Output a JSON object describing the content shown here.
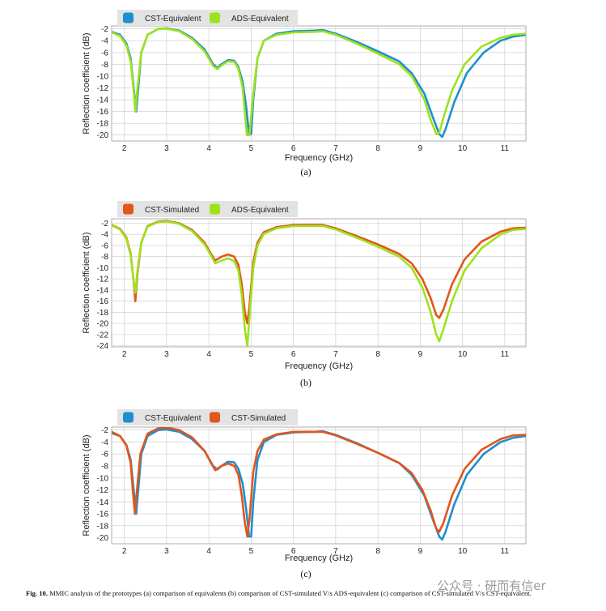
{
  "colors": {
    "CST-Equivalent": "#1e8fcf",
    "ADS-Equivalent": "#9ee21c",
    "CST-Simulated": "#e2561a",
    "plot_bg": "#ffffff",
    "grid": "#c8c8c8",
    "legend_bg": "#e3e3e3"
  },
  "chart_data": [
    {
      "type": "line",
      "panel_label": "(a)",
      "xlabel": "Frequency (GHz)",
      "ylabel": "Reflection coefficient (dB)",
      "xlim": [
        1.7,
        11.5
      ],
      "ylim": [
        -21,
        -1.5
      ],
      "xticks": [
        2,
        3,
        4,
        5,
        6,
        7,
        8,
        9,
        10,
        11
      ],
      "yticks": [
        -2,
        -4,
        -6,
        -8,
        -10,
        -12,
        -14,
        -16,
        -18,
        -20
      ],
      "grid": true,
      "legend_position": "top-left",
      "series": [
        {
          "name": "CST-Equivalent",
          "x": [
            1.7,
            1.9,
            2.05,
            2.15,
            2.22,
            2.28,
            2.33,
            2.4,
            2.55,
            2.8,
            3.0,
            3.3,
            3.6,
            3.9,
            4.1,
            4.2,
            4.3,
            4.45,
            4.6,
            4.7,
            4.8,
            4.88,
            4.95,
            5.0,
            5.05,
            5.15,
            5.3,
            5.6,
            6.0,
            6.5,
            6.7,
            7.0,
            7.5,
            8.0,
            8.5,
            8.8,
            9.1,
            9.3,
            9.45,
            9.52,
            9.6,
            9.8,
            10.1,
            10.5,
            10.9,
            11.2,
            11.5
          ],
          "y": [
            -2.5,
            -3,
            -4.5,
            -7,
            -12,
            -16,
            -12,
            -6,
            -3,
            -2,
            -1.9,
            -2.3,
            -3.5,
            -5.5,
            -8,
            -8.6,
            -8,
            -7.3,
            -7.4,
            -8.5,
            -11,
            -15,
            -19.8,
            -19.8,
            -14,
            -7,
            -4,
            -2.8,
            -2.4,
            -2.3,
            -2.2,
            -2.8,
            -4.2,
            -5.8,
            -7.5,
            -9.5,
            -13,
            -17,
            -19.8,
            -20.3,
            -19,
            -14.5,
            -9.5,
            -6,
            -4,
            -3.3,
            -3
          ]
        },
        {
          "name": "ADS-Equivalent",
          "x": [
            1.7,
            1.9,
            2.05,
            2.15,
            2.22,
            2.26,
            2.31,
            2.4,
            2.55,
            2.8,
            3.0,
            3.3,
            3.6,
            3.9,
            4.1,
            4.2,
            4.3,
            4.45,
            4.6,
            4.7,
            4.8,
            4.86,
            4.9,
            4.96,
            5.05,
            5.15,
            5.3,
            5.6,
            6.0,
            6.5,
            6.7,
            7.0,
            7.5,
            8.0,
            8.5,
            8.8,
            9.1,
            9.25,
            9.38,
            9.45,
            9.55,
            9.75,
            10.05,
            10.45,
            10.9,
            11.2,
            11.5
          ],
          "y": [
            -2.6,
            -3.2,
            -4.8,
            -7.5,
            -12.5,
            -16,
            -12,
            -6,
            -3,
            -2,
            -1.95,
            -2.4,
            -3.7,
            -5.8,
            -8.3,
            -8.8,
            -8.2,
            -7.5,
            -7.6,
            -8.8,
            -12,
            -17,
            -20,
            -20,
            -13,
            -7,
            -4,
            -3,
            -2.6,
            -2.5,
            -2.4,
            -3,
            -4.5,
            -6.2,
            -8,
            -10,
            -14,
            -17.5,
            -19.8,
            -19.6,
            -17,
            -12.5,
            -8,
            -5,
            -3.5,
            -3,
            -2.8
          ]
        }
      ]
    },
    {
      "type": "line",
      "panel_label": "(b)",
      "xlabel": "Frequency (GHz)",
      "ylabel": "Reflection coefficient (dB)",
      "xlim": [
        1.7,
        11.5
      ],
      "ylim": [
        -24.2,
        -1.2
      ],
      "xticks": [
        2,
        3,
        4,
        5,
        6,
        7,
        8,
        9,
        10,
        11
      ],
      "yticks": [
        -2,
        -4,
        -6,
        -8,
        -10,
        -12,
        -14,
        -16,
        -18,
        -20,
        -22,
        -24
      ],
      "grid": true,
      "legend_position": "top-left",
      "series": [
        {
          "name": "CST-Simulated",
          "x": [
            1.7,
            1.9,
            2.05,
            2.15,
            2.22,
            2.26,
            2.31,
            2.4,
            2.55,
            2.8,
            3.0,
            3.3,
            3.6,
            3.9,
            4.05,
            4.15,
            4.3,
            4.45,
            4.6,
            4.7,
            4.78,
            4.85,
            4.91,
            4.96,
            5.05,
            5.15,
            5.3,
            5.6,
            6.0,
            6.5,
            6.7,
            7.0,
            7.5,
            8.0,
            8.5,
            8.8,
            9.05,
            9.25,
            9.38,
            9.45,
            9.55,
            9.75,
            10.05,
            10.45,
            10.9,
            11.2,
            11.5
          ],
          "y": [
            -2.3,
            -3,
            -4.6,
            -7.5,
            -12.5,
            -16,
            -11,
            -5.5,
            -2.5,
            -1.7,
            -1.6,
            -2,
            -3.2,
            -5.5,
            -7.5,
            -8.7,
            -8,
            -7.6,
            -8,
            -9.5,
            -13,
            -18,
            -20,
            -17,
            -9,
            -5.5,
            -3.6,
            -2.7,
            -2.3,
            -2.3,
            -2.3,
            -2.9,
            -4.3,
            -5.8,
            -7.5,
            -9.2,
            -12,
            -15.5,
            -18.5,
            -19,
            -17.5,
            -13,
            -8.5,
            -5.3,
            -3.5,
            -2.9,
            -2.8
          ]
        },
        {
          "name": "ADS-Equivalent",
          "x": [
            1.7,
            1.9,
            2.05,
            2.15,
            2.22,
            2.26,
            2.31,
            2.4,
            2.55,
            2.8,
            3.0,
            3.3,
            3.6,
            3.9,
            4.05,
            4.15,
            4.3,
            4.45,
            4.6,
            4.7,
            4.78,
            4.85,
            4.91,
            4.96,
            5.05,
            5.15,
            5.3,
            5.6,
            6.0,
            6.5,
            6.7,
            7.0,
            7.5,
            8.0,
            8.5,
            8.8,
            9.05,
            9.25,
            9.38,
            9.45,
            9.55,
            9.75,
            10.05,
            10.45,
            10.9,
            11.2,
            11.5
          ],
          "y": [
            -2.4,
            -3.1,
            -4.8,
            -7.8,
            -12.5,
            -14.5,
            -10.5,
            -5.5,
            -2.6,
            -1.8,
            -1.7,
            -2.1,
            -3.4,
            -5.8,
            -7.8,
            -9.2,
            -8.7,
            -8.3,
            -8.8,
            -10.5,
            -15,
            -21,
            -24,
            -19,
            -10,
            -6,
            -3.9,
            -2.9,
            -2.5,
            -2.5,
            -2.5,
            -3.1,
            -4.6,
            -6.2,
            -8,
            -10,
            -13.5,
            -18,
            -22,
            -23.2,
            -21,
            -16,
            -10.5,
            -6.5,
            -4,
            -3.2,
            -3
          ]
        }
      ]
    },
    {
      "type": "line",
      "panel_label": "(c)",
      "xlabel": "Frequency (GHz)",
      "ylabel": "Reflection coefficient (dB)",
      "xlim": [
        1.7,
        11.5
      ],
      "ylim": [
        -21,
        -1.5
      ],
      "xticks": [
        2,
        3,
        4,
        5,
        6,
        7,
        8,
        9,
        10,
        11
      ],
      "yticks": [
        -2,
        -4,
        -6,
        -8,
        -10,
        -12,
        -14,
        -16,
        -18,
        -20
      ],
      "grid": true,
      "legend_position": "top-left",
      "series": [
        {
          "name": "CST-Equivalent",
          "x": [
            1.7,
            1.9,
            2.05,
            2.15,
            2.22,
            2.28,
            2.33,
            2.4,
            2.55,
            2.8,
            3.0,
            3.3,
            3.6,
            3.9,
            4.1,
            4.2,
            4.3,
            4.45,
            4.6,
            4.7,
            4.8,
            4.88,
            4.95,
            5.0,
            5.05,
            5.15,
            5.3,
            5.6,
            6.0,
            6.5,
            6.7,
            7.0,
            7.5,
            8.0,
            8.5,
            8.8,
            9.1,
            9.3,
            9.45,
            9.52,
            9.6,
            9.8,
            10.1,
            10.5,
            10.9,
            11.2,
            11.5
          ],
          "y": [
            -2.5,
            -3,
            -4.5,
            -7,
            -12,
            -16,
            -12,
            -6,
            -3,
            -2,
            -1.9,
            -2.3,
            -3.5,
            -5.5,
            -8,
            -8.6,
            -8,
            -7.3,
            -7.4,
            -8.5,
            -11,
            -15,
            -19.8,
            -19.8,
            -14,
            -7,
            -4,
            -2.8,
            -2.4,
            -2.3,
            -2.2,
            -2.8,
            -4.2,
            -5.8,
            -7.5,
            -9.5,
            -13,
            -17,
            -19.8,
            -20.3,
            -19,
            -14.5,
            -9.5,
            -6,
            -4,
            -3.3,
            -3
          ]
        },
        {
          "name": "CST-Simulated",
          "x": [
            1.7,
            1.9,
            2.05,
            2.15,
            2.2,
            2.25,
            2.3,
            2.38,
            2.55,
            2.8,
            3.0,
            3.3,
            3.6,
            3.9,
            4.05,
            4.15,
            4.3,
            4.45,
            4.6,
            4.7,
            4.78,
            4.85,
            4.91,
            4.96,
            5.05,
            5.15,
            5.3,
            5.6,
            6.0,
            6.5,
            6.7,
            7.0,
            7.5,
            8.0,
            8.5,
            8.8,
            9.05,
            9.25,
            9.38,
            9.45,
            9.55,
            9.75,
            10.05,
            10.45,
            10.9,
            11.2,
            11.5
          ],
          "y": [
            -2.3,
            -3,
            -4.6,
            -7.5,
            -12,
            -16,
            -12,
            -6,
            -2.6,
            -1.7,
            -1.6,
            -2,
            -3.2,
            -5.5,
            -7.5,
            -8.7,
            -8,
            -7.6,
            -8,
            -9.5,
            -13,
            -17.5,
            -19.8,
            -17,
            -9,
            -5.5,
            -3.6,
            -2.7,
            -2.3,
            -2.3,
            -2.3,
            -2.9,
            -4.3,
            -5.8,
            -7.5,
            -9.2,
            -12,
            -15.5,
            -18.5,
            -19,
            -17.5,
            -13,
            -8.5,
            -5.3,
            -3.5,
            -2.9,
            -2.8
          ]
        }
      ]
    }
  ],
  "caption": {
    "label": "Fig. 10.",
    "text": "MMIC analysis of the prototypes (a) comparison of equivalents (b) comparison of CST-simulated V/s ADS-equivalent (c) comparison of CST-simulated V/s CST-equivalent."
  },
  "watermark": "公众号 · 研而有信er"
}
